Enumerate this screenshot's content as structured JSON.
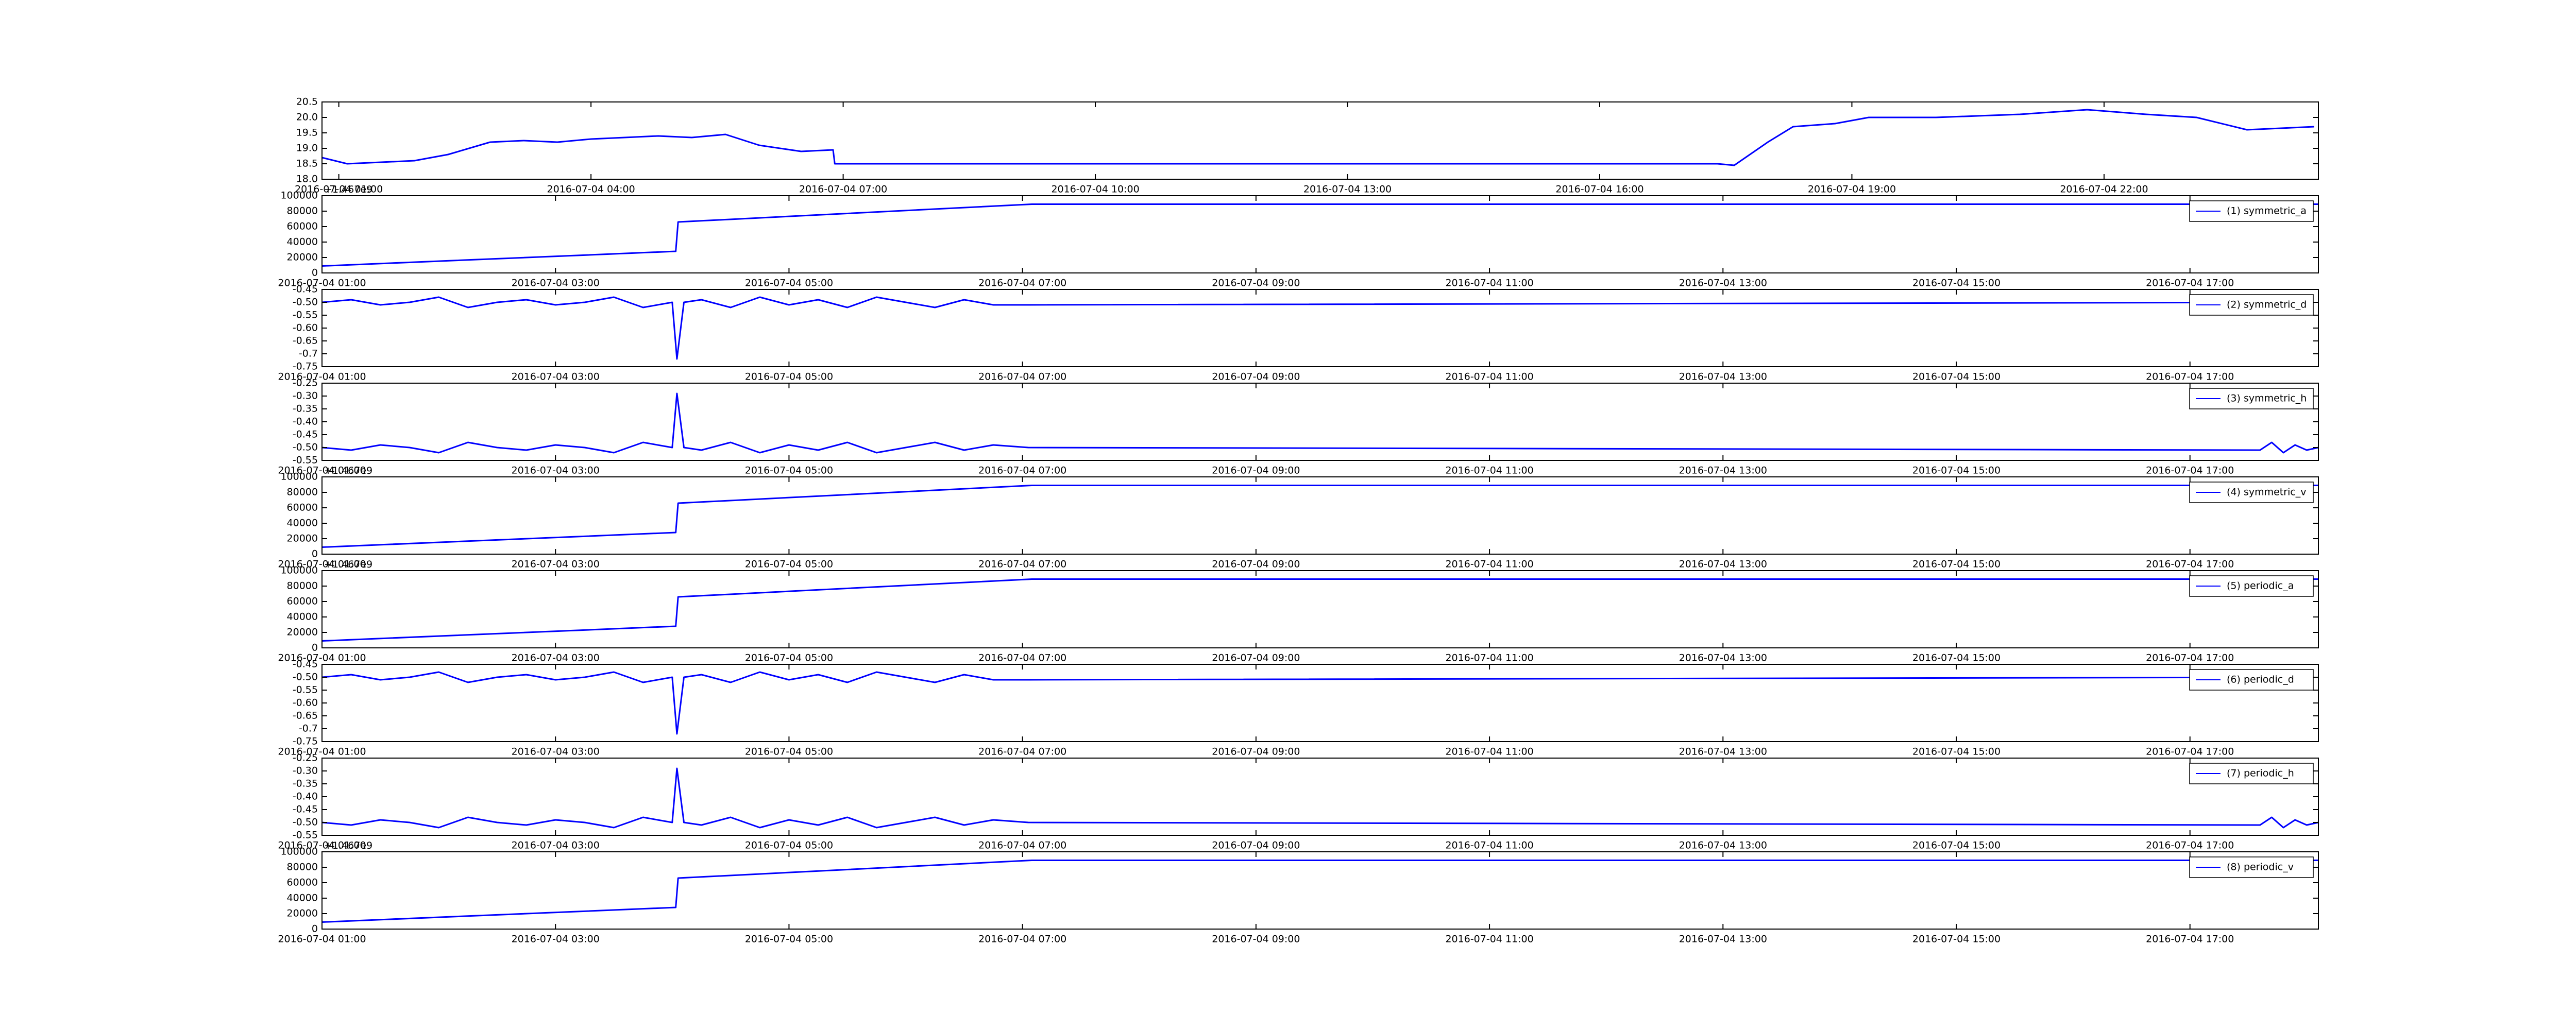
{
  "chart_data": [
    {
      "type": "line",
      "x": [
        0.8,
        1.1,
        1.5,
        1.9,
        2.3,
        2.8,
        3.2,
        3.6,
        4.0,
        4.4,
        4.8,
        5.2,
        5.6,
        6.0,
        6.5,
        6.88,
        6.9,
        17.4,
        17.6,
        18.0,
        18.3,
        18.8,
        19.2,
        20,
        20.5,
        21,
        21.8,
        22.5,
        23.1,
        23.7,
        24.5
      ],
      "series": [
        {
          "color": "#0000ff",
          "values": [
            18.7,
            18.5,
            18.55,
            18.6,
            18.8,
            19.2,
            19.25,
            19.2,
            19.3,
            19.35,
            19.4,
            19.35,
            19.45,
            19.1,
            18.9,
            18.95,
            18.5,
            18.5,
            18.45,
            19.2,
            19.7,
            19.8,
            20.0,
            20.0,
            20.05,
            20.1,
            20.25,
            20.1,
            20.0,
            19.6,
            19.7
          ]
        }
      ],
      "xlim": [
        0.8,
        24.55
      ],
      "ylim": [
        18,
        20.5
      ],
      "xticks": [
        {
          "value": 1,
          "label": "2016-07-04 01:00"
        },
        {
          "value": 4,
          "label": "2016-07-04 04:00"
        },
        {
          "value": 7,
          "label": "2016-07-04 07:00"
        },
        {
          "value": 10,
          "label": "2016-07-04 10:00"
        },
        {
          "value": 13,
          "label": "2016-07-04 13:00"
        },
        {
          "value": 16,
          "label": "2016-07-04 16:00"
        },
        {
          "value": 19,
          "label": "2016-07-04 19:00"
        },
        {
          "value": 22,
          "label": "2016-07-04 22:00"
        }
      ],
      "yticks": [
        {
          "value": 18,
          "label": "18.0"
        },
        18.5,
        {
          "value": 19,
          "label": "19.0"
        },
        19.5,
        {
          "value": 20,
          "label": "20.0"
        },
        20.5
      ]
    },
    {
      "type": "line",
      "x": [
        1,
        4.03,
        4.05,
        7.08,
        18.1
      ],
      "offset_label": "+1.467e9",
      "series": [
        {
          "name": "(1) symmetric_a",
          "color": "#0000ff",
          "values": [
            9000,
            28000,
            66000,
            89000,
            89000
          ]
        }
      ],
      "xlim": [
        1,
        18.1
      ],
      "ylim": [
        0,
        100000
      ],
      "legend": "upper right",
      "xticks": [
        {
          "value": 1,
          "label": "2016-07-04 01:00"
        },
        {
          "value": 3,
          "label": "2016-07-04 03:00"
        },
        {
          "value": 5,
          "label": "2016-07-04 05:00"
        },
        {
          "value": 7,
          "label": "2016-07-04 07:00"
        },
        {
          "value": 9,
          "label": "2016-07-04 09:00"
        },
        {
          "value": 11,
          "label": "2016-07-04 11:00"
        },
        {
          "value": 13,
          "label": "2016-07-04 13:00"
        },
        {
          "value": 15,
          "label": "2016-07-04 15:00"
        },
        {
          "value": 17,
          "label": "2016-07-04 17:00"
        }
      ],
      "yticks": [
        0,
        20000,
        40000,
        60000,
        80000,
        100000
      ]
    },
    {
      "type": "line",
      "x": [
        1,
        1.25,
        1.5,
        1.75,
        2,
        2.25,
        2.5,
        2.75,
        3,
        3.25,
        3.5,
        3.75,
        4,
        4.04,
        4.1,
        4.25,
        4.5,
        4.75,
        5,
        5.25,
        5.5,
        5.75,
        6,
        6.25,
        6.5,
        6.75,
        7.05,
        18.05
      ],
      "series": [
        {
          "name": "(2) symmetric_d",
          "color": "#0000ff",
          "values": [
            -0.5,
            -0.49,
            -0.51,
            -0.5,
            -0.48,
            -0.52,
            -0.5,
            -0.49,
            -0.51,
            -0.5,
            -0.48,
            -0.52,
            -0.5,
            -0.72,
            -0.5,
            -0.49,
            -0.52,
            -0.48,
            -0.51,
            -0.49,
            -0.52,
            -0.48,
            -0.5,
            -0.52,
            -0.49,
            -0.51,
            -0.51,
            -0.5
          ]
        }
      ],
      "xlim": [
        1,
        18.1
      ],
      "ylim": [
        -0.75,
        -0.45
      ],
      "legend": "upper right",
      "xticks": [
        {
          "value": 1,
          "label": "2016-07-04 01:00"
        },
        {
          "value": 3,
          "label": "2016-07-04 03:00"
        },
        {
          "value": 5,
          "label": "2016-07-04 05:00"
        },
        {
          "value": 7,
          "label": "2016-07-04 07:00"
        },
        {
          "value": 9,
          "label": "2016-07-04 09:00"
        },
        {
          "value": 11,
          "label": "2016-07-04 11:00"
        },
        {
          "value": 13,
          "label": "2016-07-04 13:00"
        },
        {
          "value": 15,
          "label": "2016-07-04 15:00"
        },
        {
          "value": 17,
          "label": "2016-07-04 17:00"
        }
      ],
      "yticks": [
        -0.75,
        -0.7,
        -0.65,
        {
          "value": -0.6,
          "label": "-0.60"
        },
        -0.55,
        {
          "value": -0.5,
          "label": "-0.50"
        },
        -0.45
      ]
    },
    {
      "type": "line",
      "x": [
        1,
        1.25,
        1.5,
        1.75,
        2,
        2.25,
        2.5,
        2.75,
        3,
        3.25,
        3.5,
        3.75,
        4,
        4.04,
        4.1,
        4.25,
        4.5,
        4.75,
        5,
        5.25,
        5.5,
        5.75,
        6,
        6.25,
        6.5,
        6.75,
        7.05,
        17.6,
        17.7,
        17.8,
        17.9,
        18.0,
        18.1
      ],
      "series": [
        {
          "name": "(3) symmetric_h",
          "color": "#0000ff",
          "values": [
            -0.5,
            -0.51,
            -0.49,
            -0.5,
            -0.52,
            -0.48,
            -0.5,
            -0.51,
            -0.49,
            -0.5,
            -0.52,
            -0.48,
            -0.5,
            -0.29,
            -0.5,
            -0.51,
            -0.48,
            -0.52,
            -0.49,
            -0.51,
            -0.48,
            -0.52,
            -0.5,
            -0.48,
            -0.51,
            -0.49,
            -0.5,
            -0.51,
            -0.48,
            -0.52,
            -0.49,
            -0.51,
            -0.5
          ]
        }
      ],
      "xlim": [
        1,
        18.1
      ],
      "ylim": [
        -0.55,
        -0.25
      ],
      "legend": "upper right",
      "xticks": [
        {
          "value": 1,
          "label": "2016-07-04 01:00"
        },
        {
          "value": 3,
          "label": "2016-07-04 03:00"
        },
        {
          "value": 5,
          "label": "2016-07-04 05:00"
        },
        {
          "value": 7,
          "label": "2016-07-04 07:00"
        },
        {
          "value": 9,
          "label": "2016-07-04 09:00"
        },
        {
          "value": 11,
          "label": "2016-07-04 11:00"
        },
        {
          "value": 13,
          "label": "2016-07-04 13:00"
        },
        {
          "value": 15,
          "label": "2016-07-04 15:00"
        },
        {
          "value": 17,
          "label": "2016-07-04 17:00"
        }
      ],
      "yticks": [
        -0.55,
        {
          "value": -0.5,
          "label": "-0.50"
        },
        -0.45,
        {
          "value": -0.4,
          "label": "-0.40"
        },
        -0.35,
        {
          "value": -0.3,
          "label": "-0.30"
        },
        -0.25
      ]
    },
    {
      "type": "line",
      "x": [
        1,
        4.03,
        4.05,
        7.08,
        18.1
      ],
      "offset_label": "+1.467e9",
      "series": [
        {
          "name": "(4) symmetric_v",
          "color": "#0000ff",
          "values": [
            9000,
            28000,
            66000,
            89000,
            89000
          ]
        }
      ],
      "xlim": [
        1,
        18.1
      ],
      "ylim": [
        0,
        100000
      ],
      "legend": "upper right",
      "xticks": [
        {
          "value": 1,
          "label": "2016-07-04 01:00"
        },
        {
          "value": 3,
          "label": "2016-07-04 03:00"
        },
        {
          "value": 5,
          "label": "2016-07-04 05:00"
        },
        {
          "value": 7,
          "label": "2016-07-04 07:00"
        },
        {
          "value": 9,
          "label": "2016-07-04 09:00"
        },
        {
          "value": 11,
          "label": "2016-07-04 11:00"
        },
        {
          "value": 13,
          "label": "2016-07-04 13:00"
        },
        {
          "value": 15,
          "label": "2016-07-04 15:00"
        },
        {
          "value": 17,
          "label": "2016-07-04 17:00"
        }
      ],
      "yticks": [
        0,
        20000,
        40000,
        60000,
        80000,
        100000
      ]
    },
    {
      "type": "line",
      "x": [
        1,
        4.03,
        4.05,
        7.08,
        18.1
      ],
      "offset_label": "+1.467e9",
      "series": [
        {
          "name": "(5) periodic_a",
          "color": "#0000ff",
          "values": [
            9000,
            28000,
            66000,
            89000,
            89000
          ]
        }
      ],
      "xlim": [
        1,
        18.1
      ],
      "ylim": [
        0,
        100000
      ],
      "legend": "upper right",
      "xticks": [
        {
          "value": 1,
          "label": "2016-07-04 01:00"
        },
        {
          "value": 3,
          "label": "2016-07-04 03:00"
        },
        {
          "value": 5,
          "label": "2016-07-04 05:00"
        },
        {
          "value": 7,
          "label": "2016-07-04 07:00"
        },
        {
          "value": 9,
          "label": "2016-07-04 09:00"
        },
        {
          "value": 11,
          "label": "2016-07-04 11:00"
        },
        {
          "value": 13,
          "label": "2016-07-04 13:00"
        },
        {
          "value": 15,
          "label": "2016-07-04 15:00"
        },
        {
          "value": 17,
          "label": "2016-07-04 17:00"
        }
      ],
      "yticks": [
        0,
        20000,
        40000,
        60000,
        80000,
        100000
      ]
    },
    {
      "type": "line",
      "x": [
        1,
        1.25,
        1.5,
        1.75,
        2,
        2.25,
        2.5,
        2.75,
        3,
        3.25,
        3.5,
        3.75,
        4,
        4.04,
        4.1,
        4.25,
        4.5,
        4.75,
        5,
        5.25,
        5.5,
        5.75,
        6,
        6.25,
        6.5,
        6.75,
        7.05,
        18.05
      ],
      "series": [
        {
          "name": "(6) periodic_d",
          "color": "#0000ff",
          "values": [
            -0.5,
            -0.49,
            -0.51,
            -0.5,
            -0.48,
            -0.52,
            -0.5,
            -0.49,
            -0.51,
            -0.5,
            -0.48,
            -0.52,
            -0.5,
            -0.72,
            -0.5,
            -0.49,
            -0.52,
            -0.48,
            -0.51,
            -0.49,
            -0.52,
            -0.48,
            -0.5,
            -0.52,
            -0.49,
            -0.51,
            -0.51,
            -0.5
          ]
        }
      ],
      "xlim": [
        1,
        18.1
      ],
      "ylim": [
        -0.75,
        -0.45
      ],
      "legend": "upper right",
      "xticks": [
        {
          "value": 1,
          "label": "2016-07-04 01:00"
        },
        {
          "value": 3,
          "label": "2016-07-04 03:00"
        },
        {
          "value": 5,
          "label": "2016-07-04 05:00"
        },
        {
          "value": 7,
          "label": "2016-07-04 07:00"
        },
        {
          "value": 9,
          "label": "2016-07-04 09:00"
        },
        {
          "value": 11,
          "label": "2016-07-04 11:00"
        },
        {
          "value": 13,
          "label": "2016-07-04 13:00"
        },
        {
          "value": 15,
          "label": "2016-07-04 15:00"
        },
        {
          "value": 17,
          "label": "2016-07-04 17:00"
        }
      ],
      "yticks": [
        -0.75,
        -0.7,
        -0.65,
        {
          "value": -0.6,
          "label": "-0.60"
        },
        -0.55,
        {
          "value": -0.5,
          "label": "-0.50"
        },
        -0.45
      ]
    },
    {
      "type": "line",
      "x": [
        1,
        1.25,
        1.5,
        1.75,
        2,
        2.25,
        2.5,
        2.75,
        3,
        3.25,
        3.5,
        3.75,
        4,
        4.04,
        4.1,
        4.25,
        4.5,
        4.75,
        5,
        5.25,
        5.5,
        5.75,
        6,
        6.25,
        6.5,
        6.75,
        7.05,
        17.6,
        17.7,
        17.8,
        17.9,
        18.0,
        18.1
      ],
      "series": [
        {
          "name": "(7) periodic_h",
          "color": "#0000ff",
          "values": [
            -0.5,
            -0.51,
            -0.49,
            -0.5,
            -0.52,
            -0.48,
            -0.5,
            -0.51,
            -0.49,
            -0.5,
            -0.52,
            -0.48,
            -0.5,
            -0.29,
            -0.5,
            -0.51,
            -0.48,
            -0.52,
            -0.49,
            -0.51,
            -0.48,
            -0.52,
            -0.5,
            -0.48,
            -0.51,
            -0.49,
            -0.5,
            -0.51,
            -0.48,
            -0.52,
            -0.49,
            -0.51,
            -0.5
          ]
        }
      ],
      "xlim": [
        1,
        18.1
      ],
      "ylim": [
        -0.55,
        -0.25
      ],
      "legend": "upper right",
      "xticks": [
        {
          "value": 1,
          "label": "2016-07-04 01:00"
        },
        {
          "value": 3,
          "label": "2016-07-04 03:00"
        },
        {
          "value": 5,
          "label": "2016-07-04 05:00"
        },
        {
          "value": 7,
          "label": "2016-07-04 07:00"
        },
        {
          "value": 9,
          "label": "2016-07-04 09:00"
        },
        {
          "value": 11,
          "label": "2016-07-04 11:00"
        },
        {
          "value": 13,
          "label": "2016-07-04 13:00"
        },
        {
          "value": 15,
          "label": "2016-07-04 15:00"
        },
        {
          "value": 17,
          "label": "2016-07-04 17:00"
        }
      ],
      "yticks": [
        -0.55,
        {
          "value": -0.5,
          "label": "-0.50"
        },
        -0.45,
        {
          "value": -0.4,
          "label": "-0.40"
        },
        -0.35,
        {
          "value": -0.3,
          "label": "-0.30"
        },
        -0.25
      ]
    },
    {
      "type": "line",
      "x": [
        1,
        4.03,
        4.05,
        7.08,
        18.1
      ],
      "offset_label": "+1.467e9",
      "series": [
        {
          "name": "(8) periodic_v",
          "color": "#0000ff",
          "values": [
            9000,
            28000,
            66000,
            89000,
            89000
          ]
        }
      ],
      "xlim": [
        1,
        18.1
      ],
      "ylim": [
        0,
        100000
      ],
      "legend": "upper right",
      "xticks": [
        {
          "value": 1,
          "label": "2016-07-04 01:00"
        },
        {
          "value": 3,
          "label": "2016-07-04 03:00"
        },
        {
          "value": 5,
          "label": "2016-07-04 05:00"
        },
        {
          "value": 7,
          "label": "2016-07-04 07:00"
        },
        {
          "value": 9,
          "label": "2016-07-04 09:00"
        },
        {
          "value": 11,
          "label": "2016-07-04 11:00"
        },
        {
          "value": 13,
          "label": "2016-07-04 13:00"
        },
        {
          "value": 15,
          "label": "2016-07-04 15:00"
        },
        {
          "value": 17,
          "label": "2016-07-04 17:00"
        }
      ],
      "yticks": [
        0,
        20000,
        40000,
        60000,
        80000,
        100000
      ]
    }
  ]
}
